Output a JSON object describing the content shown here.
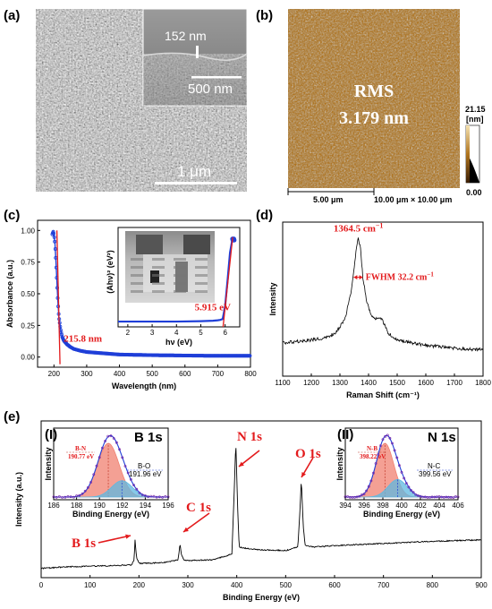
{
  "figure": {
    "panel_labels": [
      "(a)",
      "(b)",
      "(c)",
      "(d)",
      "(e)"
    ]
  },
  "sem": {
    "scale_bar": "1 μm",
    "inset_thickness": "152 nm",
    "inset_scale": "500 nm"
  },
  "afm": {
    "rms_label": "RMS",
    "rms_value": "3.179 nm",
    "colorbar_max": "21.15",
    "colorbar_unit": "[nm]",
    "colorbar_min": "0.00",
    "scale_bar": "5.00 μm",
    "scan_size": "10.00 μm × 10.00 μm",
    "colors": {
      "dark": "#5a2f08",
      "mid": "#b0741e",
      "light": "#e3b25a"
    }
  },
  "chart_data": [
    {
      "id": "c",
      "type": "line",
      "xlabel": "Wavelength (nm)",
      "ylabel": "Absorbance (a.u.)",
      "xlim": [
        150,
        800
      ],
      "ylim": [
        -0.08,
        1.08
      ],
      "xticks": [
        200,
        300,
        400,
        500,
        600,
        700,
        800
      ],
      "yticks": [
        0.0,
        0.25,
        0.5,
        0.75,
        1.0
      ],
      "ytick_labels": [
        "0.00",
        "0.25",
        "0.50",
        "0.75",
        "1.00"
      ],
      "series_color": "#1f3fd8",
      "x": [
        195,
        198,
        200,
        203,
        206,
        209,
        212,
        215,
        220,
        225,
        230,
        240,
        250,
        260,
        280,
        300,
        350,
        400,
        500,
        600,
        700,
        800
      ],
      "y": [
        0.97,
        0.99,
        0.97,
        0.9,
        0.76,
        0.6,
        0.44,
        0.32,
        0.22,
        0.16,
        0.13,
        0.1,
        0.08,
        0.065,
        0.05,
        0.04,
        0.03,
        0.02,
        0.015,
        0.012,
        0.01,
        0.01
      ],
      "annotation": "215.8 nm",
      "tangent": [
        [
          209,
          1.0
        ],
        [
          218.5,
          0.0
        ]
      ],
      "inset": {
        "xlabel": "hν (eV)",
        "ylabel": "(Ahν)² (eV²)",
        "xlim": [
          1.6,
          6.6
        ],
        "xticks": [
          2,
          3,
          4,
          5,
          6
        ],
        "annotation": "5.915 eV",
        "x": [
          1.6,
          2.0,
          3.0,
          4.0,
          5.0,
          5.5,
          5.7,
          5.8,
          5.9,
          6.0,
          6.1,
          6.2,
          6.3,
          6.4
        ],
        "y": [
          0.02,
          0.02,
          0.02,
          0.02,
          0.025,
          0.03,
          0.035,
          0.04,
          0.05,
          0.2,
          0.5,
          0.82,
          0.98,
          0.97
        ],
        "tangent": [
          [
            5.915,
            0.0
          ],
          [
            6.31,
            1.0
          ]
        ]
      }
    },
    {
      "id": "d",
      "type": "line",
      "xlabel": "Raman Shift (cm⁻¹)",
      "ylabel": "Intensity",
      "xlim": [
        1100,
        1800
      ],
      "ylim": [
        0,
        1
      ],
      "xticks": [
        1100,
        1200,
        1300,
        1400,
        1500,
        1600,
        1700,
        1800
      ],
      "series_color": "#000000",
      "x": [
        1100,
        1150,
        1200,
        1250,
        1280,
        1300,
        1320,
        1340,
        1350,
        1358,
        1364.5,
        1372,
        1380,
        1395,
        1410,
        1425,
        1440,
        1455,
        1470,
        1500,
        1550,
        1600,
        1650,
        1700,
        1750,
        1800
      ],
      "y": [
        0.2,
        0.21,
        0.22,
        0.24,
        0.27,
        0.32,
        0.4,
        0.6,
        0.78,
        0.94,
        1.0,
        0.92,
        0.7,
        0.5,
        0.41,
        0.38,
        0.4,
        0.34,
        0.27,
        0.22,
        0.2,
        0.18,
        0.17,
        0.16,
        0.15,
        0.15
      ],
      "peak_label": "1364.5 cm",
      "peak_sup": "−1",
      "fwhm_label": "FWHM 32.2 cm",
      "fwhm_sup": "−1"
    },
    {
      "id": "e",
      "type": "line",
      "xlabel": "Binding Energy (eV)",
      "ylabel": "Intensity (a.u.)",
      "xlim": [
        0,
        900
      ],
      "ylim": [
        0,
        1
      ],
      "xticks": [
        0,
        100,
        200,
        300,
        400,
        500,
        600,
        700,
        800,
        900
      ],
      "series_color": "#000000",
      "x": [
        0,
        50,
        100,
        150,
        185,
        190,
        192,
        195,
        200,
        250,
        280,
        284,
        287,
        292,
        300,
        350,
        390,
        395,
        398,
        402,
        405,
        420,
        450,
        500,
        525,
        530,
        532,
        536,
        540,
        560,
        600,
        700,
        800,
        900
      ],
      "y": [
        0.04,
        0.05,
        0.055,
        0.06,
        0.065,
        0.1,
        0.24,
        0.12,
        0.075,
        0.08,
        0.1,
        0.21,
        0.13,
        0.1,
        0.095,
        0.1,
        0.14,
        0.6,
        0.93,
        0.45,
        0.19,
        0.18,
        0.17,
        0.165,
        0.19,
        0.5,
        0.67,
        0.33,
        0.2,
        0.19,
        0.2,
        0.215,
        0.23,
        0.24
      ],
      "peaks": [
        {
          "label": "B 1s",
          "x": 191
        },
        {
          "label": "C 1s",
          "x": 285
        },
        {
          "label": "N 1s",
          "x": 398
        },
        {
          "label": "O 1s",
          "x": 532
        }
      ],
      "insets": [
        {
          "label": "(I)",
          "title": "B 1s",
          "xlabel": "Binding Energy (eV)",
          "ylabel": "Intensity",
          "xlim": [
            186,
            196
          ],
          "xticks": [
            186,
            188,
            190,
            192,
            194,
            196
          ],
          "components": [
            {
              "name": "B-N",
              "value": "190.77 eV",
              "center": 190.77,
              "amp": 0.92,
              "width": 0.95,
              "color": "#f08070"
            },
            {
              "name": "B-O",
              "value": "191.96 eV",
              "center": 191.96,
              "amp": 0.28,
              "width": 0.9,
              "color": "#5fb8e0"
            }
          ]
        },
        {
          "label": "(II)",
          "title": "N 1s",
          "xlabel": "Binding Energy (eV)",
          "ylabel": "Intensity",
          "xlim": [
            394,
            406
          ],
          "xticks": [
            394,
            396,
            398,
            400,
            402,
            404,
            406
          ],
          "components": [
            {
              "name": "N-B",
              "value": "398.22 eV",
              "center": 398.22,
              "amp": 0.92,
              "width": 0.95,
              "color": "#f08070"
            },
            {
              "name": "N-C",
              "value": "399.56 eV",
              "center": 399.56,
              "amp": 0.3,
              "width": 1.0,
              "color": "#5fb8e0"
            }
          ]
        }
      ]
    }
  ]
}
